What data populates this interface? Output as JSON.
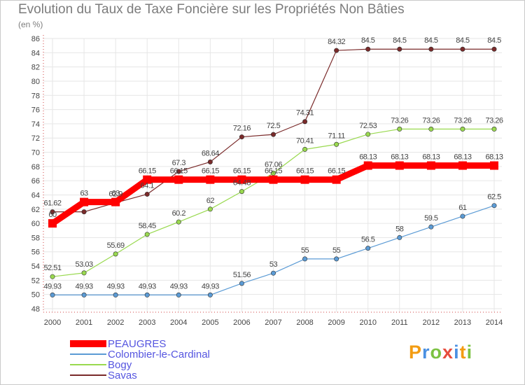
{
  "title": "Evolution du Taux de Taxe Foncière sur les Propriétés Non Bâties",
  "subtitle": "(en %)",
  "logo_text": "Proxiti",
  "chart_data": {
    "type": "line",
    "title": "Evolution du Taux de Taxe Foncière sur les Propriétés Non Bâties",
    "ylabel": "(en %)",
    "xlabel": "",
    "ylim": [
      48,
      86
    ],
    "yticks": [
      48,
      50,
      52,
      54,
      56,
      58,
      60,
      62,
      64,
      66,
      68,
      70,
      72,
      74,
      76,
      78,
      80,
      82,
      84,
      86
    ],
    "grid": true,
    "legend_position": "bottom-left",
    "x": [
      "2000",
      "2001",
      "2002",
      "2003",
      "2004",
      "2005",
      "2006",
      "2007",
      "2008",
      "2009",
      "2010",
      "2011",
      "2012",
      "2013",
      "2014"
    ],
    "series": [
      {
        "name": "PEAUGRES",
        "color": "#ff0000",
        "values": [
          60,
          63,
          63,
          66.15,
          66.15,
          66.15,
          66.15,
          66.15,
          66.15,
          66.15,
          68.13,
          68.13,
          68.13,
          68.13,
          68.13
        ],
        "labels": [
          "60",
          "63",
          "63",
          "66.15",
          "66.15",
          "66.15",
          "66.15",
          "66.15",
          "66.15",
          "66.15",
          "68.13",
          "68.13",
          "68.13",
          "68.13",
          "68.13"
        ]
      },
      {
        "name": "Colombier-le-Cardinal",
        "color": "#5b9bd5",
        "values": [
          49.93,
          49.93,
          49.93,
          49.93,
          49.93,
          49.93,
          51.56,
          53,
          55,
          55,
          56.5,
          58,
          59.5,
          61,
          62.5
        ],
        "labels": [
          "49.93",
          "49.93",
          "49.93",
          "49.93",
          "49.93",
          "49.93",
          "51.56",
          "53",
          "55",
          "55",
          "56.5",
          "58",
          "59.5",
          "61",
          "62.5"
        ]
      },
      {
        "name": "Bogy",
        "color": "#99d94f",
        "values": [
          52.51,
          53.03,
          55.69,
          58.45,
          60.2,
          62,
          64.48,
          67.06,
          70.41,
          71.11,
          72.53,
          73.26,
          73.26,
          73.26,
          73.26
        ],
        "labels": [
          "52.51",
          "53.03",
          "55.69",
          "58.45",
          "60.2",
          "62",
          "64.48",
          "67.06",
          "70.41",
          "71.11",
          "72.53",
          "73.26",
          "73.26",
          "73.26",
          "73.26"
        ]
      },
      {
        "name": "Savas",
        "color": "#7a2a2a",
        "values": [
          61.62,
          61.62,
          62.9,
          64.1,
          67.3,
          68.64,
          72.16,
          72.5,
          74.31,
          84.32,
          84.5,
          84.5,
          84.5,
          84.5,
          84.5
        ],
        "labels": [
          "61.62",
          "",
          "62.9",
          "64.1",
          "67.3",
          "68.64",
          "72.16",
          "72.5",
          "74.31",
          "84.32",
          "84.5",
          "84.5",
          "84.5",
          "84.5",
          "84.5"
        ]
      }
    ]
  },
  "logo_colors": [
    "#f39c12",
    "#4a90e2",
    "#7cc242",
    "#e74c3c",
    "#4a90e2",
    "#f39c12",
    "#7cc242"
  ]
}
